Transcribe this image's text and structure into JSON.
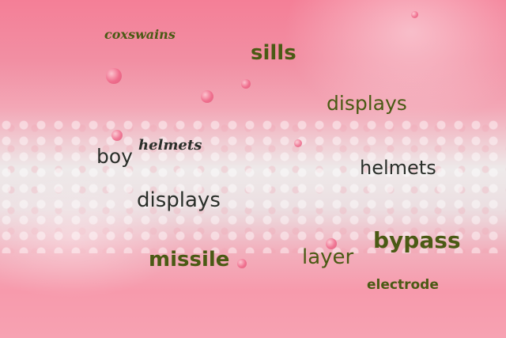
{
  "words": [
    {
      "text": "coxswains"
    },
    {
      "text": "sills"
    },
    {
      "text": "displays"
    },
    {
      "text": "boy"
    },
    {
      "text": "helmets"
    },
    {
      "text": "helmets"
    },
    {
      "text": "displays"
    },
    {
      "text": "missile"
    },
    {
      "text": "layer"
    },
    {
      "text": "bypass"
    },
    {
      "text": "electrode"
    }
  ],
  "palette": {
    "olive_text": "#4a5a14",
    "dark_text": "#2a2f2a",
    "pink_background": "#f47f97",
    "foam_white": "#eeeaea"
  }
}
